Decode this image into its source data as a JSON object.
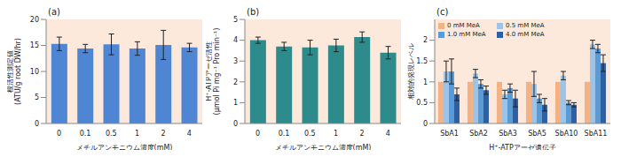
{
  "chart_data": [
    {
      "type": "bar",
      "title": "(a)",
      "categories": [
        "0",
        "0.1",
        "0.5",
        "1",
        "2",
        "4"
      ],
      "values": [
        15.3,
        14.4,
        15.2,
        14.4,
        15.1,
        14.6
      ],
      "errors": [
        1.3,
        0.8,
        2.0,
        1.3,
        2.8,
        0.8
      ],
      "color": "#4f86d4",
      "xlabel": "メチルアンモニウム濃度(mM)",
      "ylabel": [
        "根活性測定値",
        "(ATU/g root DW/hr)"
      ],
      "ylim": [
        0,
        20
      ],
      "yticks": [
        0,
        5,
        10,
        15,
        20
      ]
    },
    {
      "type": "bar",
      "title": "(b)",
      "categories": [
        "0",
        "0.1",
        "0.5",
        "1",
        "2",
        "4"
      ],
      "values": [
        4.0,
        3.7,
        3.65,
        3.75,
        4.15,
        3.4
      ],
      "errors": [
        0.15,
        0.2,
        0.35,
        0.3,
        0.25,
        0.3
      ],
      "color": "#2e8b8b",
      "xlabel": "メチルアンモニウム濃度(mM)",
      "ylabel": [
        "H⁺-ATPアーゼ活性",
        "(μmol Pi mg⁻¹ Pro min⁻¹)"
      ],
      "ylim": [
        0,
        5
      ],
      "yticks": [
        0,
        1,
        2,
        3,
        4,
        5
      ]
    },
    {
      "type": "bar",
      "title": "(c)",
      "categories": [
        "SbA1",
        "SbA2",
        "SbA3",
        "SbA5",
        "SbA10",
        "SbA11"
      ],
      "series": [
        {
          "name": "0 mM MeA",
          "color": "#f4b183",
          "values": [
            1,
            1,
            1,
            1,
            1,
            1
          ]
        },
        {
          "name": "0.5 mM MeA",
          "color": "#9dc3e6",
          "values": [
            1.25,
            1.2,
            0.7,
            0.95,
            1.15,
            1.9
          ],
          "errors": [
            0.25,
            0.1,
            0.1,
            0.3,
            0.1,
            0.1
          ]
        },
        {
          "name": "1.0 mM MeA",
          "color": "#5b9bd5",
          "values": [
            1.25,
            0.95,
            0.85,
            0.6,
            0.5,
            1.8
          ],
          "errors": [
            0.3,
            0.1,
            0.1,
            0.1,
            0.05,
            0.1
          ]
        },
        {
          "name": "4.0 mM MeA",
          "color": "#2e5fa0",
          "values": [
            0.7,
            0.8,
            0.6,
            0.45,
            0.45,
            1.45
          ],
          "errors": [
            0.15,
            0.1,
            0.2,
            0.15,
            0.05,
            0.2
          ]
        }
      ],
      "xlabel": "H⁺-ATPアーゼ遺伝子",
      "ylabel": "相対的発現レベル",
      "ylim": [
        0,
        2.5
      ],
      "yticks": [
        0,
        0.5,
        1,
        1.5,
        2
      ],
      "legend": "upper left"
    }
  ]
}
